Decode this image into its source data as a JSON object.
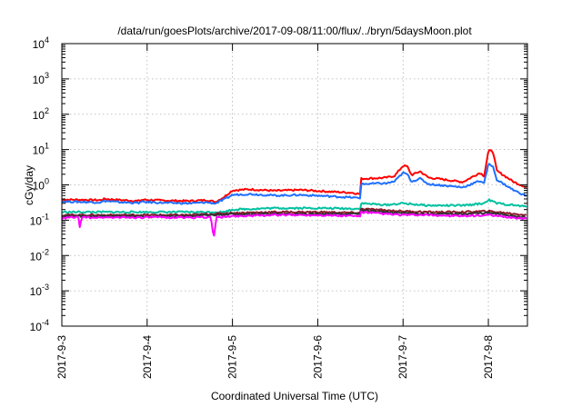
{
  "chart_data": {
    "type": "line",
    "title": "/data/run/goesPlots/archive/2017-09-08/11:00/flux/../bryn/5daysMoon.plot",
    "xlabel": "Coordinated Universal Time (UTC)",
    "ylabel": "cGy/day",
    "y_scale": "log",
    "ylim": [
      0.0001,
      10000
    ],
    "xlim": [
      "2017-09-03",
      "2017-09-08 11:00"
    ],
    "x_unit": "days",
    "grid": true,
    "legend": "none",
    "y_ticks": [
      {
        "value": 0.0001,
        "base": "10",
        "exp": "-4"
      },
      {
        "value": 0.001,
        "base": "10",
        "exp": "-3"
      },
      {
        "value": 0.01,
        "base": "10",
        "exp": "-2"
      },
      {
        "value": 0.1,
        "base": "10",
        "exp": "-1"
      },
      {
        "value": 1,
        "base": "10",
        "exp": "0"
      },
      {
        "value": 10,
        "base": "10",
        "exp": "1"
      },
      {
        "value": 100,
        "base": "10",
        "exp": "2"
      },
      {
        "value": 1000,
        "base": "10",
        "exp": "3"
      },
      {
        "value": 10000,
        "base": "10",
        "exp": "4"
      }
    ],
    "x_ticks": [
      {
        "value": 0,
        "label": "2017-9-3"
      },
      {
        "value": 1,
        "label": "2017-9-4"
      },
      {
        "value": 2,
        "label": "2017-9-5"
      },
      {
        "value": 3,
        "label": "2017-9-6"
      },
      {
        "value": 4,
        "label": "2017-9-7"
      },
      {
        "value": 5,
        "label": "2017-9-8"
      }
    ],
    "series": [
      {
        "color": "#ff0000",
        "x": [
          0,
          0.2,
          0.45,
          0.5,
          0.7,
          0.9,
          0.95,
          1.2,
          1.5,
          1.7,
          1.8,
          1.9,
          2.0,
          2.2,
          2.5,
          2.8,
          3.1,
          3.4,
          3.5,
          3.51,
          3.7,
          3.8,
          3.9,
          4.0,
          4.05,
          4.1,
          4.2,
          4.3,
          4.5,
          4.7,
          4.9,
          4.95,
          5.0,
          5.05,
          5.1,
          5.3,
          5.45
        ],
        "y": [
          0.38,
          0.38,
          0.37,
          0.4,
          0.37,
          0.35,
          0.38,
          0.36,
          0.35,
          0.37,
          0.33,
          0.45,
          0.7,
          0.75,
          0.68,
          0.72,
          0.65,
          0.6,
          0.55,
          1.5,
          1.55,
          1.6,
          1.8,
          3.5,
          3.3,
          1.9,
          2.4,
          1.6,
          1.4,
          1.2,
          2.2,
          1.8,
          9.0,
          9.5,
          2.5,
          1.2,
          0.85
        ]
      },
      {
        "color": "#1f6fff",
        "x": [
          0,
          0.2,
          0.45,
          0.5,
          0.7,
          0.9,
          0.95,
          1.2,
          1.5,
          1.7,
          1.8,
          1.9,
          2.0,
          2.2,
          2.5,
          2.8,
          3.1,
          3.4,
          3.5,
          3.51,
          3.7,
          3.8,
          3.9,
          4.0,
          4.05,
          4.1,
          4.2,
          4.3,
          4.5,
          4.7,
          4.9,
          4.95,
          5.0,
          5.05,
          5.1,
          5.3,
          5.45
        ],
        "y": [
          0.34,
          0.33,
          0.32,
          0.35,
          0.32,
          0.31,
          0.33,
          0.31,
          0.3,
          0.32,
          0.3,
          0.38,
          0.52,
          0.55,
          0.5,
          0.52,
          0.48,
          0.44,
          0.42,
          1.05,
          1.1,
          1.1,
          1.25,
          2.2,
          2.0,
          1.25,
          1.5,
          1.05,
          0.95,
          0.85,
          1.3,
          1.15,
          3.8,
          3.5,
          1.4,
          0.7,
          0.48
        ]
      },
      {
        "color": "#00c0a0",
        "x": [
          0,
          0.5,
          1.0,
          1.5,
          1.9,
          2.0,
          2.5,
          3.0,
          3.5,
          3.51,
          3.8,
          4.0,
          4.3,
          4.7,
          4.95,
          5.0,
          5.1,
          5.45
        ],
        "y": [
          0.17,
          0.17,
          0.17,
          0.17,
          0.17,
          0.2,
          0.22,
          0.22,
          0.21,
          0.3,
          0.27,
          0.3,
          0.26,
          0.26,
          0.3,
          0.38,
          0.3,
          0.24
        ]
      },
      {
        "color": "#8b1a2a",
        "x": [
          0,
          0.5,
          1.0,
          1.5,
          2.0,
          2.5,
          3.0,
          3.5,
          3.51,
          3.8,
          4.0,
          4.3,
          4.7,
          5.0,
          5.1,
          5.45
        ],
        "y": [
          0.14,
          0.14,
          0.14,
          0.14,
          0.16,
          0.17,
          0.17,
          0.16,
          0.21,
          0.19,
          0.18,
          0.17,
          0.17,
          0.18,
          0.17,
          0.14
        ]
      },
      {
        "color": "#333333",
        "x": [
          0,
          0.5,
          1.0,
          1.5,
          2.0,
          2.5,
          3.0,
          3.5,
          3.51,
          3.8,
          4.0,
          4.3,
          4.7,
          5.0,
          5.1,
          5.45
        ],
        "y": [
          0.13,
          0.13,
          0.13,
          0.13,
          0.15,
          0.15,
          0.15,
          0.15,
          0.19,
          0.17,
          0.16,
          0.15,
          0.15,
          0.16,
          0.15,
          0.12
        ]
      },
      {
        "color": "#ff00ff",
        "x": [
          0,
          0.1,
          0.2,
          0.21,
          0.23,
          0.3,
          0.7,
          0.9,
          1.0,
          1.5,
          1.7,
          1.75,
          1.78,
          1.81,
          1.85,
          2.0,
          2.5,
          3.0,
          3.5,
          3.51,
          3.8,
          4.0,
          4.3,
          4.7,
          5.0,
          5.1,
          5.45
        ],
        "y": [
          0.11,
          0.12,
          0.12,
          0.06,
          0.12,
          0.12,
          0.12,
          0.12,
          0.12,
          0.12,
          0.12,
          0.12,
          0.03,
          0.12,
          0.12,
          0.13,
          0.14,
          0.14,
          0.13,
          0.17,
          0.15,
          0.14,
          0.14,
          0.13,
          0.14,
          0.13,
          0.11
        ]
      }
    ]
  }
}
